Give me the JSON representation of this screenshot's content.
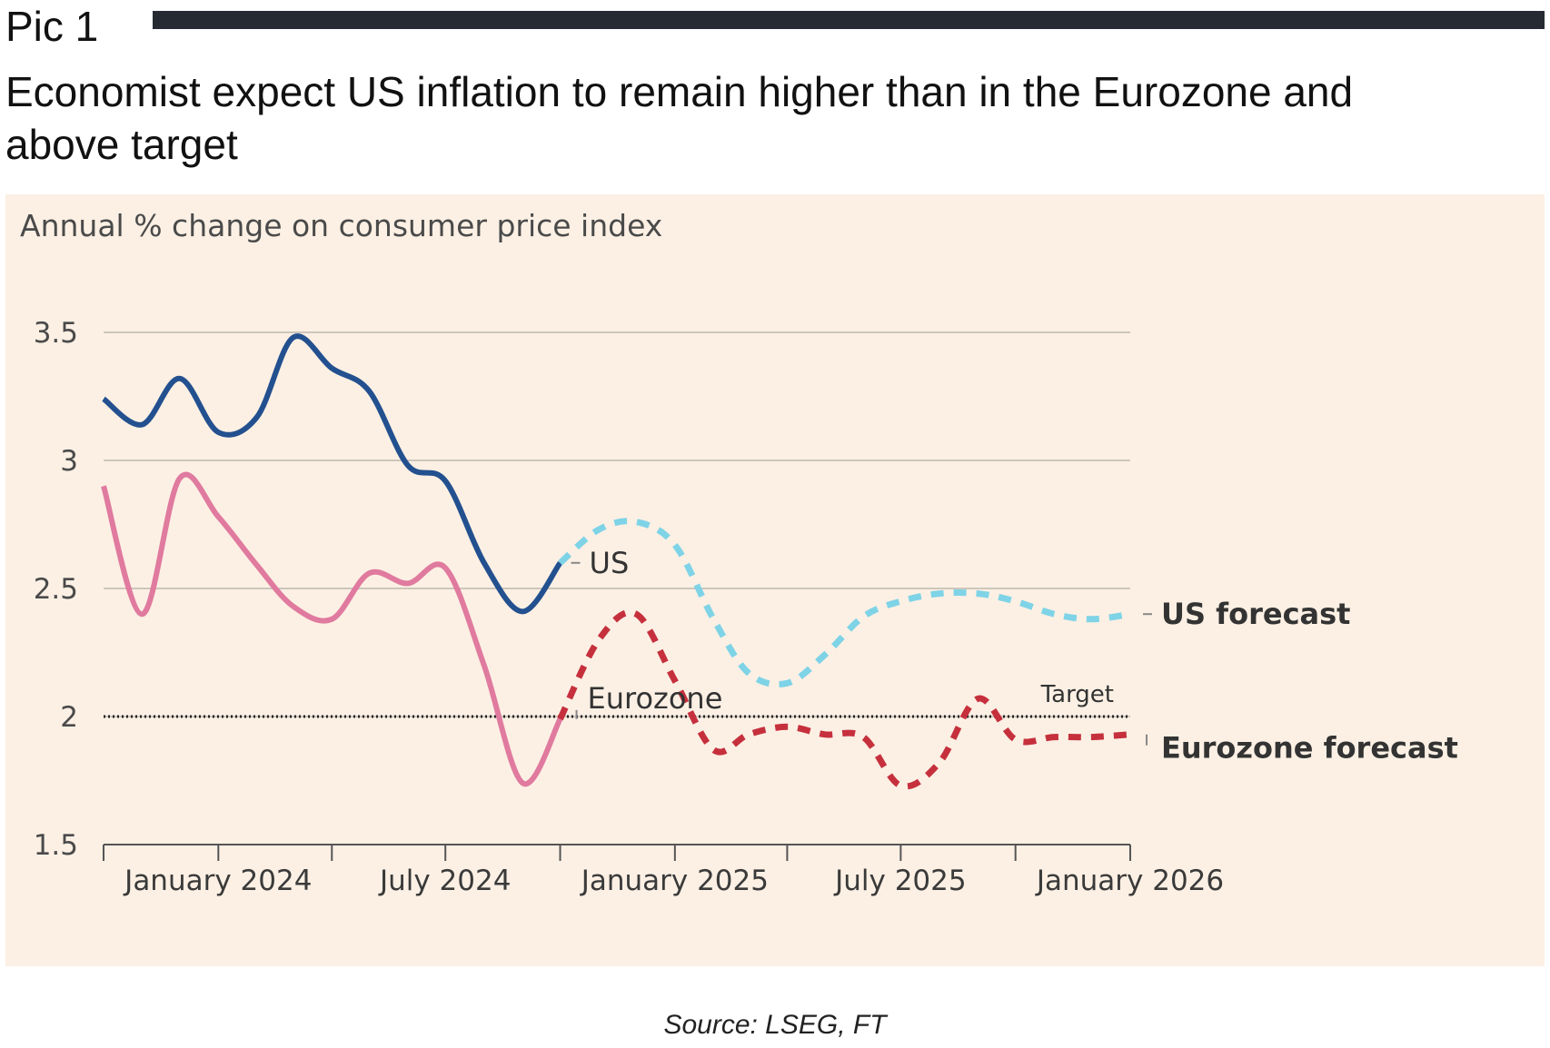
{
  "header": {
    "pic_label": "Pic 1",
    "title": "Economist expect US inflation to remain higher than in the Eurozone and above target"
  },
  "footer": {
    "source": "Source: LSEG, FT"
  },
  "colors": {
    "background": "#fcf0e4",
    "us": "#23508f",
    "us_forecast": "#7fd3e6",
    "eurozone": "#e07a9f",
    "eurozone_forecast": "#c6303d",
    "target": "#222222",
    "grid": "#cdc6bc",
    "axis": "#555555"
  },
  "chart_data": {
    "type": "line",
    "subtitle": "Annual % change on consumer price index",
    "ylim": [
      1.5,
      3.5
    ],
    "y_ticks": [
      1.5,
      2,
      2.5,
      3,
      3.5
    ],
    "y_tick_labels": [
      "1.5",
      "2",
      "2.5",
      "3",
      "3.5"
    ],
    "x_range": [
      "2023-10-01",
      "2026-01-01"
    ],
    "x_ticks": [
      "2023-10-01",
      "2024-01-01",
      "2024-04-01",
      "2024-07-01",
      "2024-10-01",
      "2025-01-01",
      "2025-04-01",
      "2025-07-01",
      "2025-10-01",
      "2026-01-01"
    ],
    "x_tick_labels": [
      {
        "date": "2024-01-01",
        "label": "January 2024"
      },
      {
        "date": "2024-07-01",
        "label": "July 2024"
      },
      {
        "date": "2025-01-01",
        "label": "January 2025"
      },
      {
        "date": "2025-07-01",
        "label": "July 2025"
      },
      {
        "date": "2026-01-01",
        "label": "January 2026"
      }
    ],
    "grid": true,
    "series": [
      {
        "name": "US",
        "style": "solid",
        "color": "#23508f",
        "points": [
          [
            "2023-10-01",
            3.24
          ],
          [
            "2023-11-01",
            3.14
          ],
          [
            "2023-12-01",
            3.32
          ],
          [
            "2024-01-01",
            3.11
          ],
          [
            "2024-02-01",
            3.17
          ],
          [
            "2024-03-01",
            3.48
          ],
          [
            "2024-04-01",
            3.36
          ],
          [
            "2024-05-01",
            3.27
          ],
          [
            "2024-06-01",
            2.98
          ],
          [
            "2024-07-01",
            2.92
          ],
          [
            "2024-08-01",
            2.6
          ],
          [
            "2024-09-01",
            2.41
          ],
          [
            "2024-10-01",
            2.6
          ]
        ]
      },
      {
        "name": "US forecast",
        "style": "dashed",
        "color": "#7fd3e6",
        "points": [
          [
            "2024-10-01",
            2.6
          ],
          [
            "2024-11-01",
            2.73
          ],
          [
            "2024-12-01",
            2.76
          ],
          [
            "2025-01-01",
            2.67
          ],
          [
            "2025-02-01",
            2.38
          ],
          [
            "2025-03-01",
            2.17
          ],
          [
            "2025-04-01",
            2.13
          ],
          [
            "2025-05-01",
            2.24
          ],
          [
            "2025-06-01",
            2.39
          ],
          [
            "2025-07-01",
            2.45
          ],
          [
            "2025-08-01",
            2.48
          ],
          [
            "2025-09-01",
            2.48
          ],
          [
            "2025-10-01",
            2.45
          ],
          [
            "2025-11-01",
            2.4
          ],
          [
            "2025-12-01",
            2.38
          ],
          [
            "2026-01-01",
            2.4
          ]
        ]
      },
      {
        "name": "Eurozone",
        "style": "solid",
        "color": "#e07a9f",
        "points": [
          [
            "2023-10-01",
            2.9
          ],
          [
            "2023-11-01",
            2.4
          ],
          [
            "2023-12-01",
            2.93
          ],
          [
            "2024-01-01",
            2.78
          ],
          [
            "2024-02-01",
            2.59
          ],
          [
            "2024-03-01",
            2.43
          ],
          [
            "2024-04-01",
            2.38
          ],
          [
            "2024-05-01",
            2.56
          ],
          [
            "2024-06-01",
            2.52
          ],
          [
            "2024-07-01",
            2.58
          ],
          [
            "2024-08-01",
            2.2
          ],
          [
            "2024-09-01",
            1.74
          ],
          [
            "2024-10-01",
            1.99
          ]
        ]
      },
      {
        "name": "Eurozone forecast",
        "style": "dashed",
        "color": "#c6303d",
        "points": [
          [
            "2024-10-01",
            1.99
          ],
          [
            "2024-11-01",
            2.3
          ],
          [
            "2024-12-01",
            2.4
          ],
          [
            "2025-01-01",
            2.14
          ],
          [
            "2025-02-01",
            1.87
          ],
          [
            "2025-03-01",
            1.93
          ],
          [
            "2025-04-01",
            1.96
          ],
          [
            "2025-05-01",
            1.93
          ],
          [
            "2025-06-01",
            1.92
          ],
          [
            "2025-07-01",
            1.73
          ],
          [
            "2025-08-01",
            1.82
          ],
          [
            "2025-09-01",
            2.07
          ],
          [
            "2025-10-01",
            1.91
          ],
          [
            "2025-11-01",
            1.92
          ],
          [
            "2025-12-01",
            1.92
          ],
          [
            "2026-01-01",
            1.93
          ]
        ]
      }
    ],
    "target": {
      "value": 2.0,
      "label": "Target"
    },
    "annotations": [
      {
        "text": "US",
        "series": "US"
      },
      {
        "text": "Eurozone",
        "series": "Eurozone"
      },
      {
        "text": "US forecast",
        "series": "US forecast"
      },
      {
        "text": "Eurozone forecast",
        "series": "Eurozone forecast"
      }
    ]
  }
}
